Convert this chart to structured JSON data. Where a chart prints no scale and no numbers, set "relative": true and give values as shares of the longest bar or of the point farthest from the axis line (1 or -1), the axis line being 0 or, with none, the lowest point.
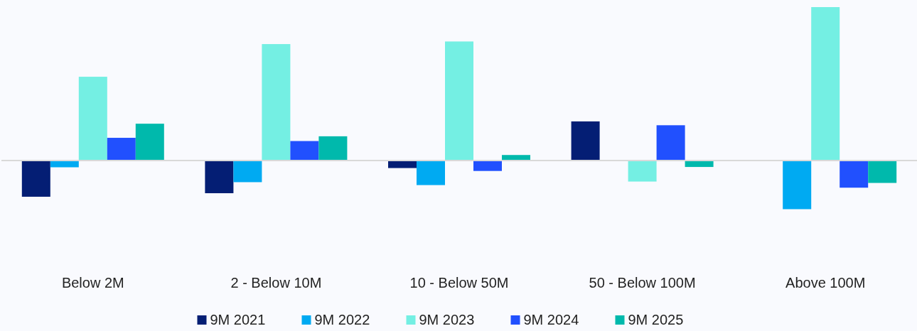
{
  "chart_data": {
    "type": "bar",
    "relative": true,
    "categories": [
      "Below 2M",
      "2 - Below 10M",
      "10 - Below 50M",
      "50 - Below 100M",
      "Above 100M"
    ],
    "legend": "bottom",
    "series": [
      {
        "name": "9M 2021",
        "color": "#041e74",
        "values": [
          -0.236,
          -0.213,
          -0.049,
          0.255,
          null
        ]
      },
      {
        "name": "9M 2022",
        "color": "#00aaf2",
        "values": [
          -0.044,
          -0.141,
          -0.16,
          null,
          -0.317
        ]
      },
      {
        "name": "9M 2023",
        "color": "#74efe3",
        "values": [
          0.546,
          0.759,
          0.776,
          -0.137,
          1
        ]
      },
      {
        "name": "9M 2024",
        "color": "#2150fe",
        "values": [
          0.148,
          0.127,
          -0.068,
          0.23,
          -0.177
        ]
      },
      {
        "name": "9M 2025",
        "color": "#00b9ac",
        "values": [
          0.24,
          0.158,
          0.036,
          -0.042,
          -0.146
        ]
      }
    ]
  }
}
